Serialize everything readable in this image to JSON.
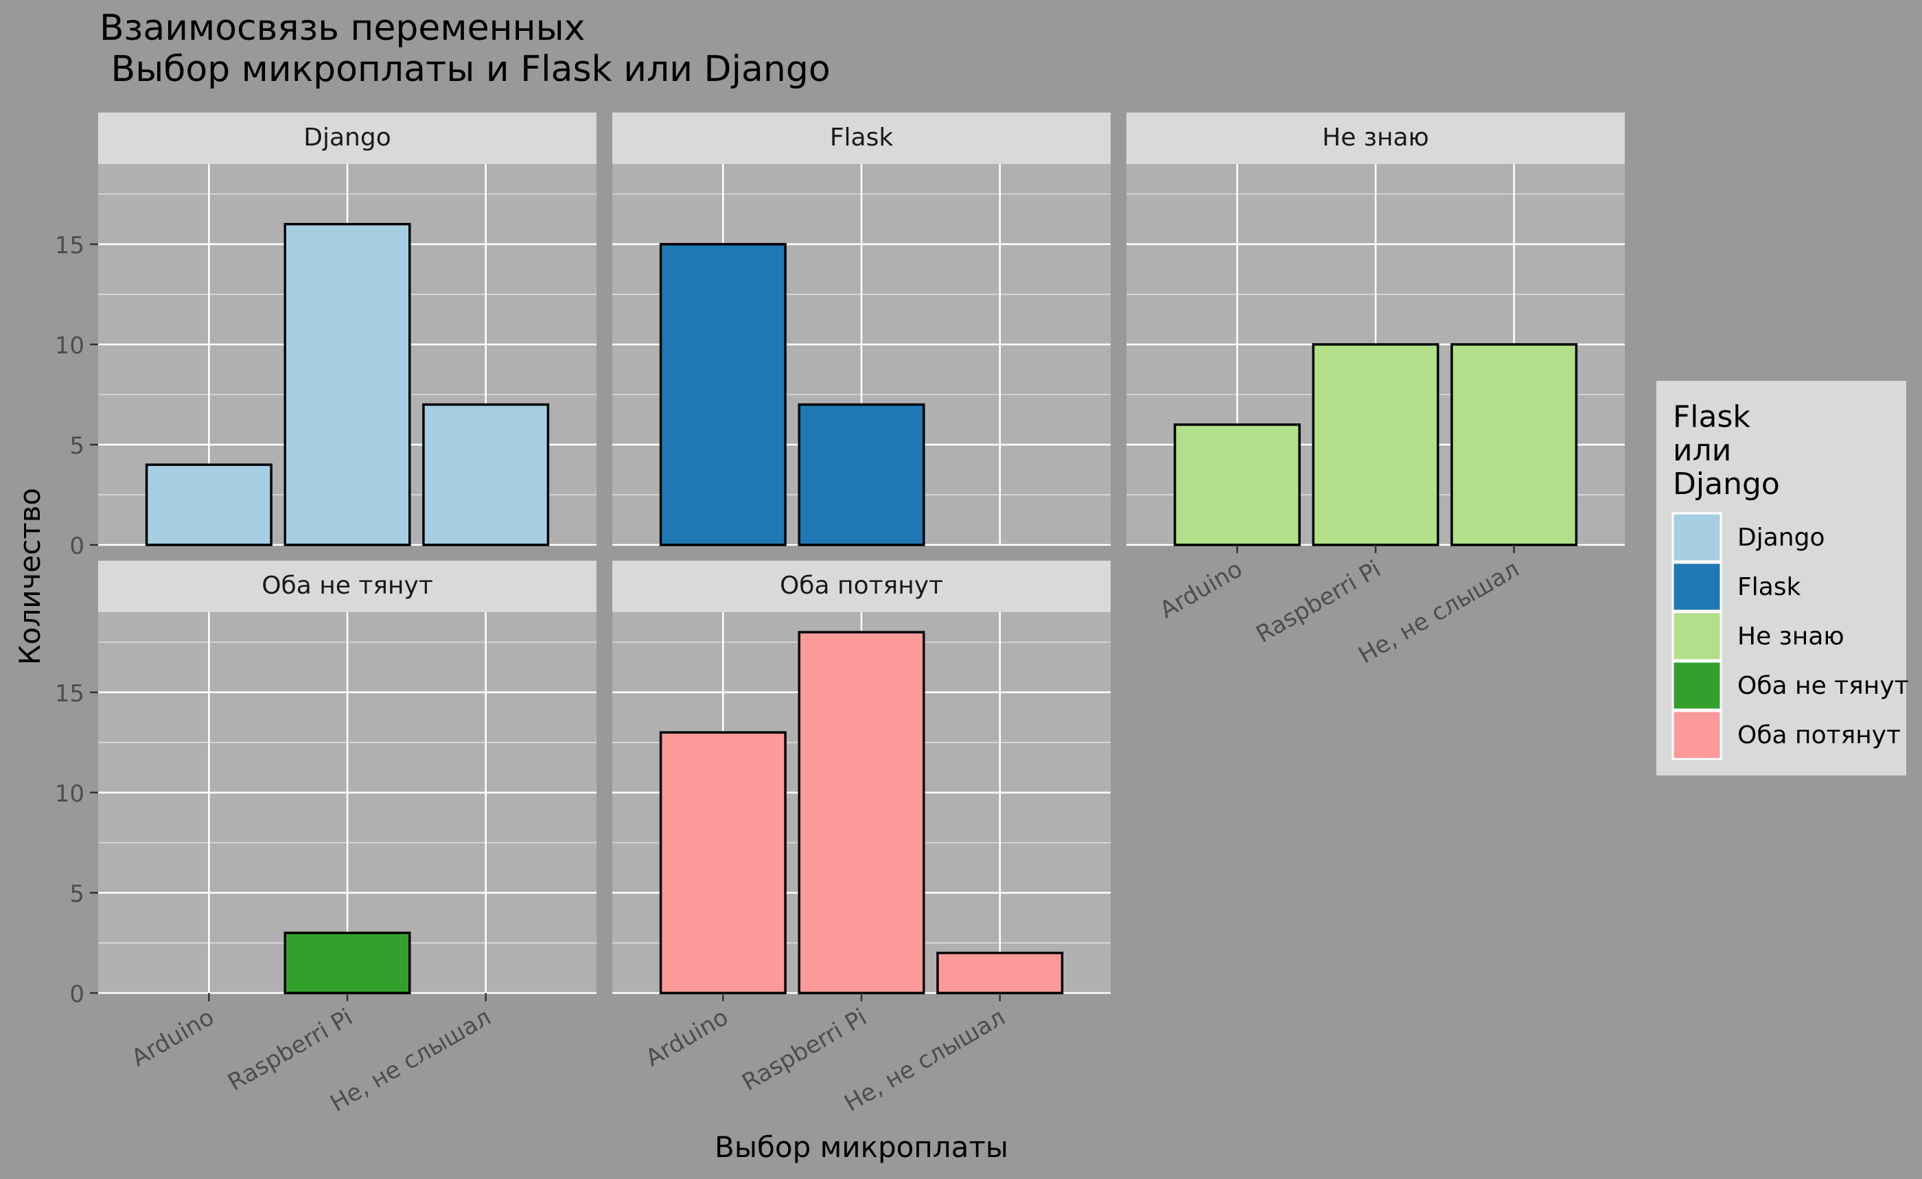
{
  "chart_data": {
    "type": "bar",
    "title": "Взаимосвязь переменных\n Выбор микроплаты и Flask или Django",
    "xlabel": "Выбор микроплаты",
    "ylabel": "Количество",
    "ylim": [
      0,
      19
    ],
    "yticks": [
      0,
      5,
      10,
      15
    ],
    "grid": true,
    "categories": [
      "Arduino",
      "Raspberri Pi",
      "Не, не слышал"
    ],
    "facets": [
      {
        "name": "Django",
        "values": [
          4,
          16,
          7
        ]
      },
      {
        "name": "Flask",
        "values": [
          15,
          7,
          null
        ]
      },
      {
        "name": "Не знаю",
        "values": [
          6,
          10,
          10
        ]
      },
      {
        "name": "Оба не тянут",
        "values": [
          null,
          3,
          null
        ]
      },
      {
        "name": "Оба потянут",
        "values": [
          13,
          18,
          2
        ]
      }
    ],
    "legend": {
      "title": "Flask\nили\nDjango",
      "position": "right",
      "items": [
        {
          "label": "Django",
          "color": "#A6CEE3"
        },
        {
          "label": "Flask",
          "color": "#1F78B4"
        },
        {
          "label": "Не знаю",
          "color": "#B2DF8A"
        },
        {
          "label": "Оба не тянут",
          "color": "#33A02C"
        },
        {
          "label": "Оба потянут",
          "color": "#FB9A99"
        }
      ]
    }
  }
}
